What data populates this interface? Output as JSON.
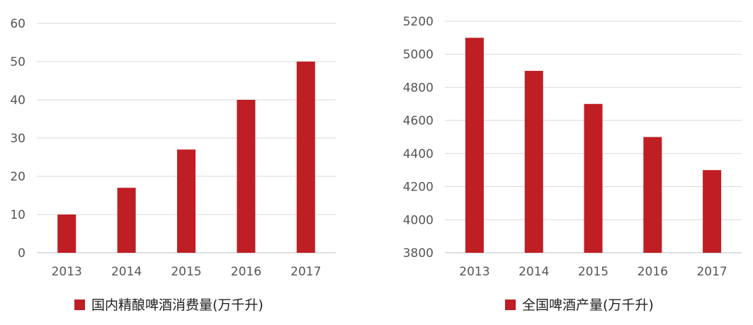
{
  "colors": {
    "bar": "#BE1E24",
    "grid": "#D9D9D9",
    "axis": "#BFBFBF",
    "text": "#555555"
  },
  "chart_data": [
    {
      "type": "bar",
      "categories": [
        "2013",
        "2014",
        "2015",
        "2016",
        "2017"
      ],
      "series": [
        {
          "name": "国内精酿啤酒消费量(万千升)",
          "values": [
            10,
            17,
            27,
            40,
            50
          ]
        }
      ],
      "ylim": [
        0,
        60
      ],
      "yticks": [
        0,
        10,
        20,
        30,
        40,
        50,
        60
      ],
      "grid": true,
      "legend": "bottom"
    },
    {
      "type": "bar",
      "categories": [
        "2013",
        "2014",
        "2015",
        "2016",
        "2017"
      ],
      "series": [
        {
          "name": "全国啤酒产量(万千升)",
          "values": [
            5100,
            4900,
            4700,
            4500,
            4300
          ]
        }
      ],
      "ylim": [
        3800,
        5200
      ],
      "yticks": [
        3800,
        4000,
        4200,
        4400,
        4600,
        4800,
        5000,
        5200
      ],
      "grid": true,
      "legend": "bottom"
    }
  ]
}
